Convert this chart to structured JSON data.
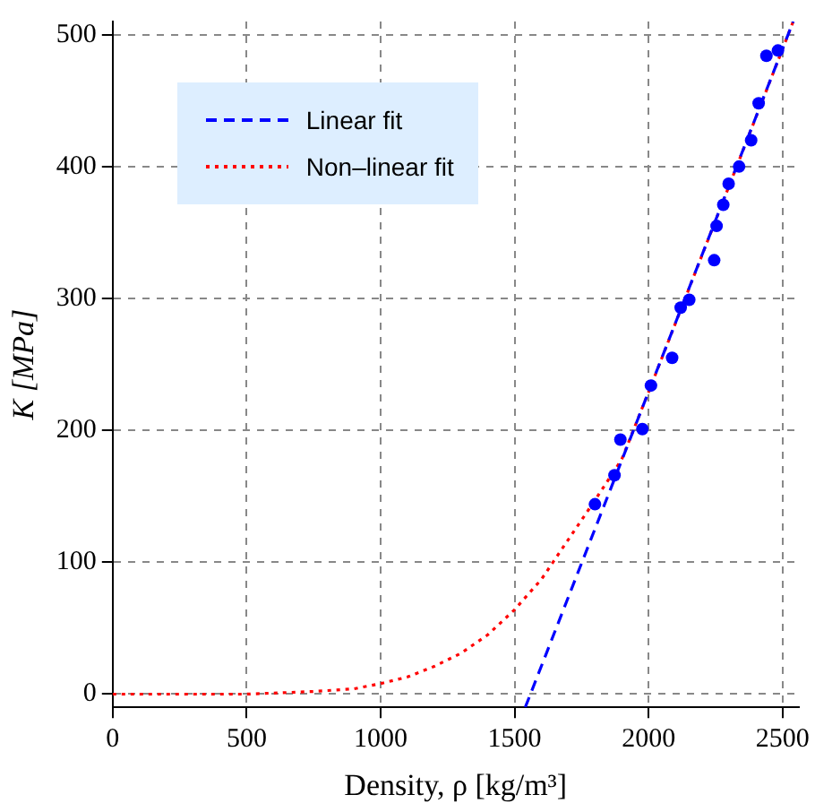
{
  "chart_data": {
    "type": "scatter",
    "xlabel": "Density, ρ [kg/m³]",
    "ylabel": "K [MPa]",
    "xlim": [
      0,
      2560
    ],
    "ylim": [
      -10,
      510
    ],
    "xticks": [
      0,
      500,
      1000,
      1500,
      2000,
      2500
    ],
    "yticks": [
      0,
      100,
      200,
      300,
      400,
      500
    ],
    "grid": true,
    "legend": "top left",
    "series": [
      {
        "color": "#0000ff",
        "marker": "circle",
        "x": [
          1800,
          1873,
          1895,
          1977,
          2009,
          2088,
          2120,
          2152,
          2245,
          2254,
          2279,
          2299,
          2338,
          2383,
          2411,
          2440,
          2483
        ],
        "values": [
          144,
          166,
          193,
          201,
          234,
          255,
          293,
          299,
          329,
          355,
          371,
          387,
          400,
          420,
          448,
          484,
          488
        ]
      },
      {
        "type": "line",
        "name": "Linear fit",
        "color": "#0000ff",
        "line_style": "dashed",
        "x": [
          1540,
          2540
        ],
        "values": [
          -10,
          510
        ]
      },
      {
        "type": "line",
        "name": "Non–linear fit",
        "color": "#ff0000",
        "line_style": "dotted",
        "x": [
          0,
          500,
          750,
          900,
          1000,
          1100,
          1200,
          1300,
          1400,
          1500,
          1600,
          1700,
          1800,
          1900,
          2000,
          2500,
          2540
        ],
        "values": [
          0,
          0,
          2,
          4,
          8,
          13,
          21,
          31,
          45,
          64,
          87,
          117,
          147,
          178,
          229,
          489,
          510
        ]
      }
    ]
  }
}
